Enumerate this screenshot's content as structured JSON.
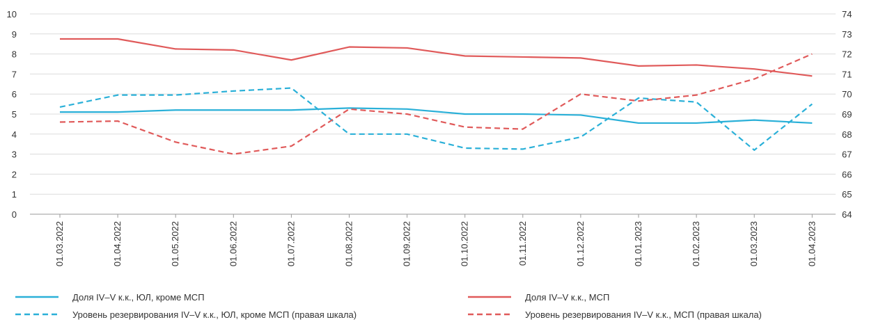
{
  "chart_data": {
    "type": "line",
    "categories": [
      "01.03.2022",
      "01.04.2022",
      "01.05.2022",
      "01.06.2022",
      "01.07.2022",
      "01.08.2022",
      "01.09.2022",
      "01.10.2022",
      "01.11.2022",
      "01.12.2022",
      "01.01.2023",
      "01.02.2023",
      "01.03.2023",
      "01.04.2023"
    ],
    "ylim": [
      0,
      10
    ],
    "y_ticks": [
      "0",
      "1",
      "2",
      "3",
      "4",
      "5",
      "6",
      "7",
      "8",
      "9",
      "10"
    ],
    "y2lim": [
      64,
      74
    ],
    "y2_ticks": [
      "64",
      "65",
      "66",
      "67",
      "68",
      "69",
      "70",
      "71",
      "72",
      "73",
      "74"
    ],
    "grid": "horizontal",
    "legend_position": "bottom",
    "series": [
      {
        "name": "Доля IV–V к.к., ЮЛ, кроме МСП",
        "axis": "left",
        "color": "#2ab0d8",
        "dash": "solid",
        "values": [
          5.1,
          5.1,
          5.2,
          5.2,
          5.2,
          5.3,
          5.25,
          5.0,
          5.0,
          4.95,
          4.55,
          4.55,
          4.7,
          4.55
        ]
      },
      {
        "name": "Доля IV–V к.к., МСП",
        "axis": "left",
        "color": "#e05a5a",
        "dash": "solid",
        "values": [
          8.75,
          8.75,
          8.25,
          8.2,
          7.7,
          8.35,
          8.3,
          7.9,
          7.85,
          7.8,
          7.4,
          7.45,
          7.25,
          6.9
        ]
      },
      {
        "name": "Уровень резервирования IV–V к.к., ЮЛ, кроме МСП (правая шкала)",
        "axis": "right",
        "color": "#2ab0d8",
        "dash": "dashed",
        "values": [
          69.35,
          69.95,
          69.95,
          70.15,
          70.3,
          68.0,
          68.0,
          67.3,
          67.25,
          67.85,
          69.8,
          69.6,
          67.2,
          69.5
        ]
      },
      {
        "name": "Уровень резервирования IV–V к.к., МСП (правая шкала)",
        "axis": "right",
        "color": "#e05a5a",
        "dash": "dashed",
        "values": [
          68.6,
          68.65,
          67.6,
          67.0,
          67.4,
          69.25,
          69.0,
          68.35,
          68.25,
          70.0,
          69.65,
          69.95,
          70.75,
          72.0
        ]
      }
    ]
  }
}
